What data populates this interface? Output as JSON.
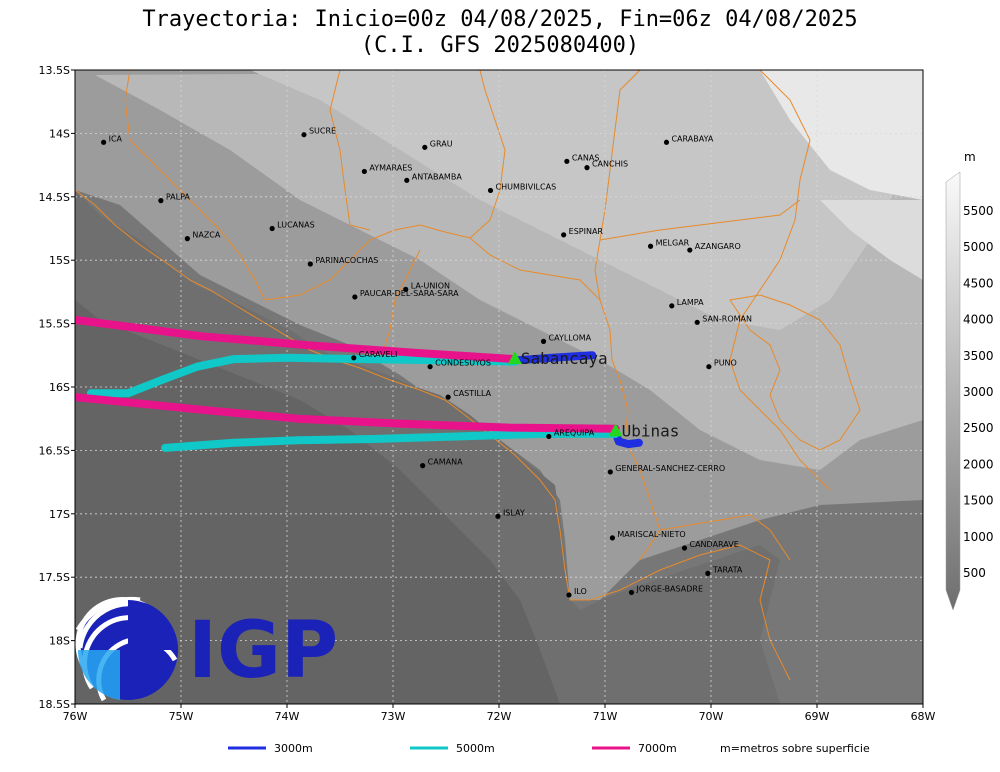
{
  "title": {
    "line1": "Trayectoria: Inicio=00z 04/08/2025, Fin=06z 04/08/2025",
    "line2": "(C.I. GFS 2025080400)"
  },
  "axes": {
    "lon_ticks": [
      "76W",
      "75W",
      "74W",
      "73W",
      "72W",
      "71W",
      "70W",
      "69W",
      "68W"
    ],
    "lat_ticks": [
      "13.5S",
      "14S",
      "14.5S",
      "15S",
      "15.5S",
      "16S",
      "16.5S",
      "17S",
      "17.5S",
      "18S",
      "18.5S"
    ]
  },
  "colorbar": {
    "unit": "m",
    "labels": [
      "500",
      "1000",
      "1500",
      "2000",
      "2500",
      "3000",
      "3500",
      "4000",
      "4500",
      "5000",
      "5500"
    ]
  },
  "places": [
    {
      "name": "ICA",
      "lon": -75.73,
      "lat": -14.07
    },
    {
      "name": "SUCRE",
      "lon": -73.84,
      "lat": -14.01
    },
    {
      "name": "GRAU",
      "lon": -72.7,
      "lat": -14.11
    },
    {
      "name": "CANAS",
      "lon": -71.36,
      "lat": -14.22
    },
    {
      "name": "CANCHIS",
      "lon": -71.17,
      "lat": -14.27
    },
    {
      "name": "CARABAYA",
      "lon": -70.42,
      "lat": -14.07
    },
    {
      "name": "AYMARAES",
      "lon": -73.27,
      "lat": -14.3
    },
    {
      "name": "ANTABAMBA",
      "lon": -72.87,
      "lat": -14.37
    },
    {
      "name": "CHUMBIVILCAS",
      "lon": -72.08,
      "lat": -14.45
    },
    {
      "name": "PALPA",
      "lon": -75.19,
      "lat": -14.53
    },
    {
      "name": "LUCANAS",
      "lon": -74.14,
      "lat": -14.75
    },
    {
      "name": "NAZCA",
      "lon": -74.94,
      "lat": -14.83
    },
    {
      "name": "ESPINAR",
      "lon": -71.39,
      "lat": -14.8
    },
    {
      "name": "MELGAR",
      "lon": -70.57,
      "lat": -14.89
    },
    {
      "name": "AZANGARO",
      "lon": -70.2,
      "lat": -14.92
    },
    {
      "name": "PARINACOCHAS",
      "lon": -73.78,
      "lat": -15.03
    },
    {
      "name": "LA-UNION",
      "lon": -72.88,
      "lat": -15.23
    },
    {
      "name": "PAUCAR-DEL-SARA-SARA",
      "lon": -73.36,
      "lat": -15.29
    },
    {
      "name": "LAMPA",
      "lon": -70.37,
      "lat": -15.36
    },
    {
      "name": "SAN-ROMAN",
      "lon": -70.13,
      "lat": -15.49
    },
    {
      "name": "CAYLLOMA",
      "lon": -71.58,
      "lat": -15.64
    },
    {
      "name": "CARAVELI",
      "lon": -73.37,
      "lat": -15.77
    },
    {
      "name": "CONDESUYOS",
      "lon": -72.65,
      "lat": -15.84
    },
    {
      "name": "PUNO",
      "lon": -70.02,
      "lat": -15.84
    },
    {
      "name": "CASTILLA",
      "lon": -72.48,
      "lat": -16.08
    },
    {
      "name": "AREQUIPA",
      "lon": -71.53,
      "lat": -16.39
    },
    {
      "name": "CAMANA",
      "lon": -72.72,
      "lat": -16.62
    },
    {
      "name": "GENERAL-SANCHEZ-CERRO",
      "lon": -70.95,
      "lat": -16.67
    },
    {
      "name": "ISLAY",
      "lon": -72.01,
      "lat": -17.02
    },
    {
      "name": "MARISCAL-NIETO",
      "lon": -70.93,
      "lat": -17.19
    },
    {
      "name": "CANDARAVE",
      "lon": -70.25,
      "lat": -17.27
    },
    {
      "name": "TARATA",
      "lon": -70.03,
      "lat": -17.47
    },
    {
      "name": "JORGE-BASADRE",
      "lon": -70.75,
      "lat": -17.62
    },
    {
      "name": "ILO",
      "lon": -71.34,
      "lat": -17.64
    }
  ],
  "volcanoes": [
    {
      "name": "Sabancaya",
      "lon": -71.85,
      "lat": -15.78
    },
    {
      "name": "Ubinas",
      "lon": -70.9,
      "lat": -16.35
    }
  ],
  "trajectories": [
    {
      "height_label": "3000m",
      "color": "#1f2ee0",
      "points": [
        [
          -71.85,
          -15.79
        ],
        [
          -71.5,
          -15.77
        ],
        [
          -71.12,
          -15.75
        ]
      ]
    },
    {
      "height_label": "3000m",
      "color": "#1f2ee0",
      "points": [
        [
          -70.9,
          -16.36
        ],
        [
          -70.87,
          -16.43
        ],
        [
          -70.78,
          -16.45
        ],
        [
          -70.68,
          -16.44
        ]
      ]
    },
    {
      "height_label": "5000m",
      "color": "#10c8c8",
      "points": [
        [
          -71.85,
          -15.8
        ],
        [
          -72.5,
          -15.79
        ],
        [
          -73.3,
          -15.78
        ],
        [
          -74.0,
          -15.77
        ],
        [
          -74.5,
          -15.78
        ],
        [
          -74.85,
          -15.84
        ],
        [
          -75.2,
          -15.95
        ],
        [
          -75.5,
          -16.05
        ],
        [
          -75.85,
          -16.05
        ]
      ]
    },
    {
      "height_label": "5000m",
      "color": "#10c8c8",
      "points": [
        [
          -70.9,
          -16.37
        ],
        [
          -71.6,
          -16.37
        ],
        [
          -72.4,
          -16.39
        ],
        [
          -73.2,
          -16.41
        ],
        [
          -73.9,
          -16.42
        ],
        [
          -74.5,
          -16.44
        ],
        [
          -75.15,
          -16.48
        ]
      ]
    },
    {
      "height_label": "7000m",
      "color": "#e8138a",
      "points": [
        [
          -71.85,
          -15.78
        ],
        [
          -72.8,
          -15.73
        ],
        [
          -73.8,
          -15.67
        ],
        [
          -74.8,
          -15.6
        ],
        [
          -76.0,
          -15.47
        ]
      ]
    },
    {
      "height_label": "7000m",
      "color": "#e8138a",
      "points": [
        [
          -70.9,
          -16.33
        ],
        [
          -71.9,
          -16.32
        ],
        [
          -72.9,
          -16.29
        ],
        [
          -73.9,
          -16.25
        ],
        [
          -74.8,
          -16.18
        ],
        [
          -76.0,
          -16.08
        ]
      ]
    }
  ],
  "legend": {
    "items": [
      {
        "label": "3000m",
        "color": "#1f2ee0"
      },
      {
        "label": "5000m",
        "color": "#10c8c8"
      },
      {
        "label": "7000m",
        "color": "#e8138a"
      }
    ],
    "note": "m=metros sobre superficie"
  },
  "logo": {
    "text": "IGP",
    "color": "#1a22b8"
  }
}
